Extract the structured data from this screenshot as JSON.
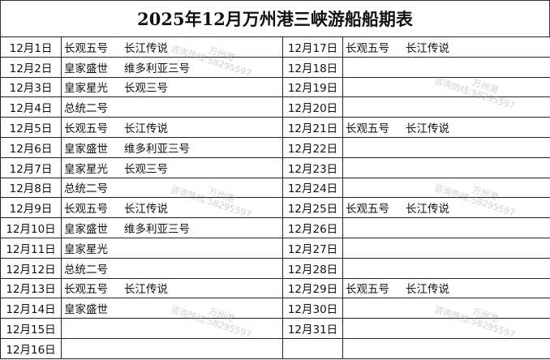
{
  "title": "2025年12月万州港三峡游船船期表",
  "left_rows": [
    {
      "date": "12月1日",
      "ships": [
        "长观五号",
        "长江传说"
      ]
    },
    {
      "date": "12月2日",
      "ships": [
        "皇家盛世",
        "维多利亚三号"
      ]
    },
    {
      "date": "12月3日",
      "ships": [
        "皇家星光",
        "长观三号"
      ]
    },
    {
      "date": "12月4日",
      "ships": [
        "总统二号"
      ]
    },
    {
      "date": "12月5日",
      "ships": [
        "长观五号",
        "长江传说"
      ]
    },
    {
      "date": "12月6日",
      "ships": [
        "皇家盛世",
        "维多利亚三号"
      ]
    },
    {
      "date": "12月7日",
      "ships": [
        "皇家星光",
        "长观三号"
      ]
    },
    {
      "date": "12月8日",
      "ships": [
        "总统二号"
      ]
    },
    {
      "date": "12月9日",
      "ships": [
        "长观五号",
        "长江传说"
      ]
    },
    {
      "date": "12月10日",
      "ships": [
        "皇家盛世",
        "维多利亚三号"
      ]
    },
    {
      "date": "12月11日",
      "ships": [
        "皇家星光"
      ]
    },
    {
      "date": "12月12日",
      "ships": [
        "总统二号"
      ]
    },
    {
      "date": "12月13日",
      "ships": [
        "长观五号",
        "长江传说"
      ]
    },
    {
      "date": "12月14日",
      "ships": [
        "皇家盛世"
      ]
    },
    {
      "date": "12月15日",
      "ships": []
    },
    {
      "date": "12月16日",
      "ships": []
    }
  ],
  "right_rows": [
    {
      "date": "12月17日",
      "ships": [
        "长观五号",
        "长江传说"
      ]
    },
    {
      "date": "12月18日",
      "ships": []
    },
    {
      "date": "12月19日",
      "ships": []
    },
    {
      "date": "12月20日",
      "ships": []
    },
    {
      "date": "12月21日",
      "ships": [
        "长观五号",
        "长江传说"
      ]
    },
    {
      "date": "12月22日",
      "ships": []
    },
    {
      "date": "12月23日",
      "ships": []
    },
    {
      "date": "12月24日",
      "ships": []
    },
    {
      "date": "12月25日",
      "ships": [
        "长观五号",
        "长江传说"
      ]
    },
    {
      "date": "12月26日",
      "ships": []
    },
    {
      "date": "12月27日",
      "ships": []
    },
    {
      "date": "12月28日",
      "ships": []
    },
    {
      "date": "12月29日",
      "ships": [
        "长观五号",
        "长江传说"
      ]
    },
    {
      "date": "12月30日",
      "ships": []
    },
    {
      "date": "12月31日",
      "ships": []
    },
    {
      "date": "",
      "ships": []
    }
  ],
  "watermark": {
    "line1": "万州港",
    "line2": "咨询热线:58295597"
  }
}
